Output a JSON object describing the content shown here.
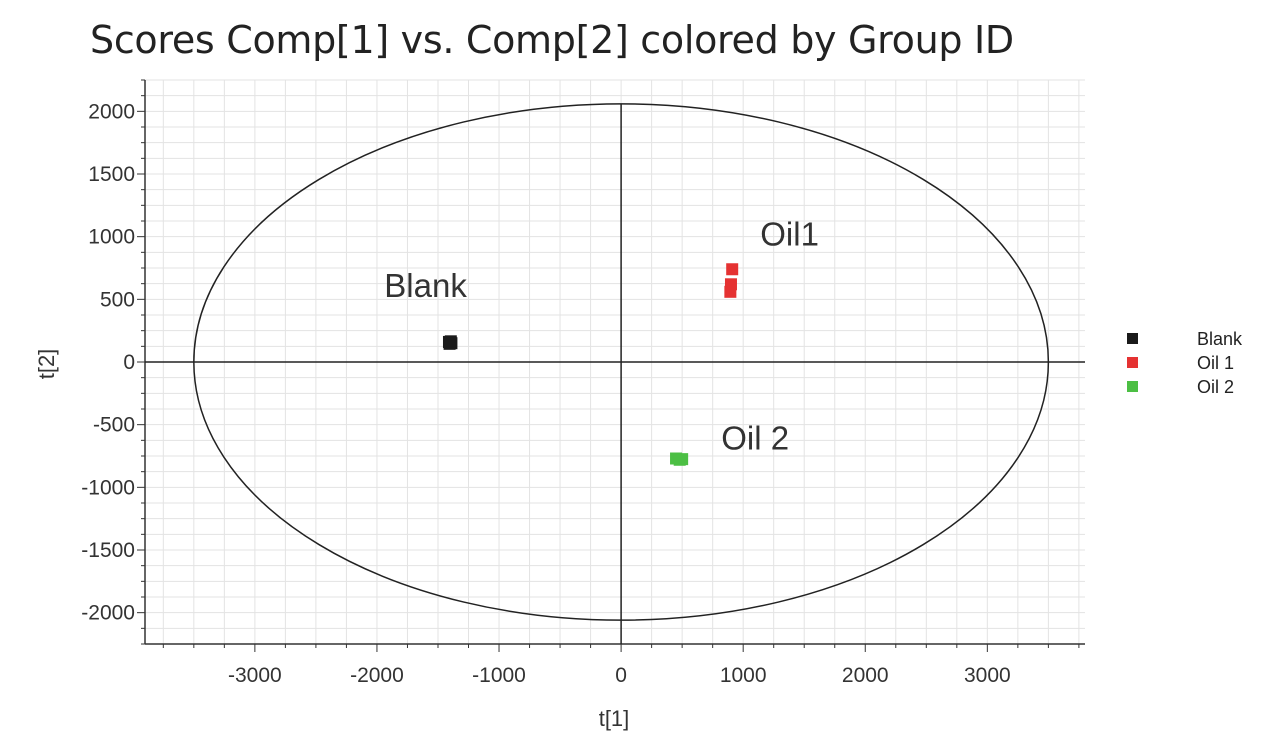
{
  "chart_data": {
    "type": "scatter",
    "title": "Scores Comp[1] vs. Comp[2] colored by Group ID",
    "xlabel": "t[1]",
    "ylabel": "t[2]",
    "xlim": [
      -3900,
      3800
    ],
    "ylim": [
      -2250,
      2250
    ],
    "xticks": [
      -3000,
      -2000,
      -1000,
      0,
      1000,
      2000,
      3000
    ],
    "yticks": [
      2000,
      1500,
      1000,
      500,
      0,
      -500,
      -1000,
      -1500,
      -2000
    ],
    "grid": true,
    "legend_position": "right",
    "ellipse": {
      "rx": 3500,
      "ry": 2060
    },
    "series": [
      {
        "name": "Blank",
        "color": "#1a1a1a",
        "points": [
          [
            -1410,
            160
          ],
          [
            -1390,
            150
          ],
          [
            -1405,
            145
          ],
          [
            -1395,
            165
          ]
        ]
      },
      {
        "name": "Oil 1",
        "color": "#e53232",
        "points": [
          [
            910,
            740
          ],
          [
            900,
            620
          ],
          [
            895,
            560
          ]
        ]
      },
      {
        "name": "Oil 2",
        "color": "#4cbf44",
        "points": [
          [
            450,
            -770
          ],
          [
            480,
            -780
          ],
          [
            500,
            -775
          ]
        ]
      }
    ],
    "annotations": [
      {
        "text": "Blank",
        "x": -1940,
        "y": 520
      },
      {
        "text": "Oil1",
        "x": 1140,
        "y": 930
      },
      {
        "text": "Oil 2",
        "x": 820,
        "y": -700
      }
    ]
  }
}
